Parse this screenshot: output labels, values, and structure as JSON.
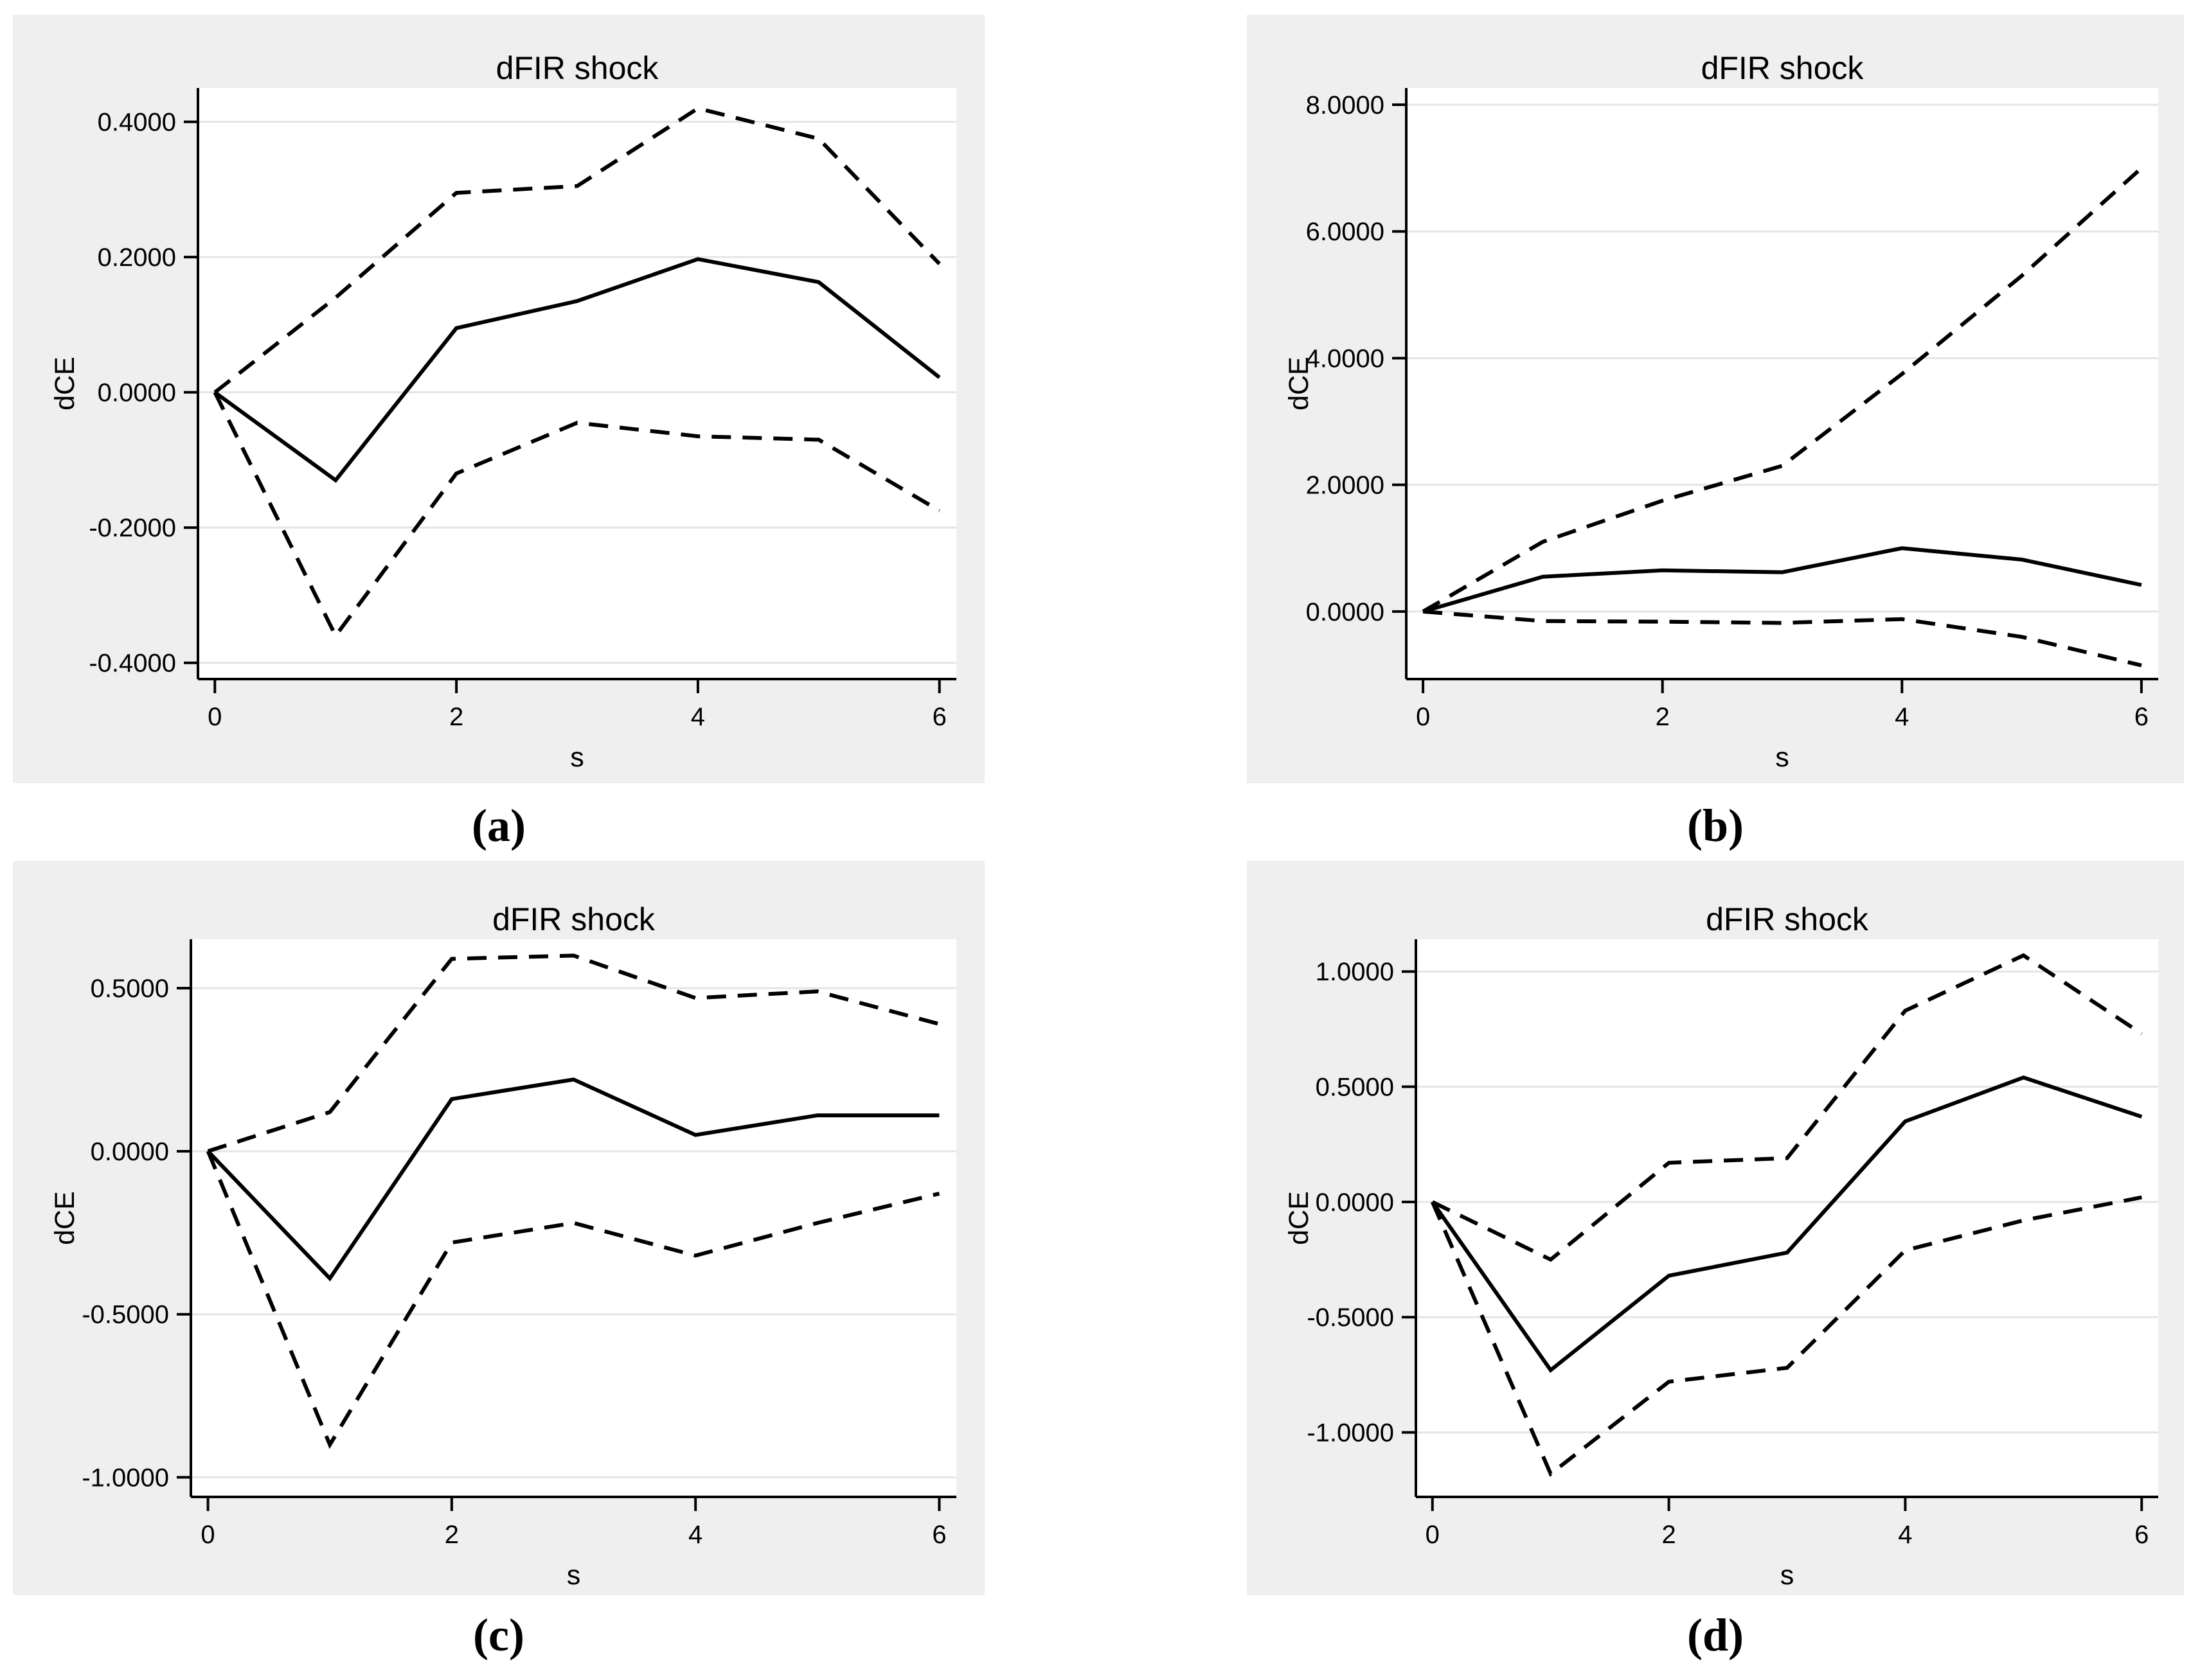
{
  "figure": {
    "kind": "impulse-response-function-grid",
    "colors": {
      "page_background": "#ffffff",
      "panel_background": "#efefef",
      "plot_background": "#ffffff",
      "grid": "#e5e5e5",
      "axis": "#000000",
      "line": "#000000"
    }
  },
  "chart_data": [
    {
      "id": "a",
      "type": "line",
      "caption": "(a)",
      "title": "dFIR shock",
      "xlabel": "s",
      "ylabel": "dCE",
      "x": [
        0,
        1,
        2,
        3,
        4,
        5,
        6
      ],
      "xlim": [
        -0.14,
        6.14
      ],
      "ylim": [
        -0.424,
        0.45
      ],
      "xticks": [
        0,
        2,
        4,
        6
      ],
      "xtick_labels": [
        "0",
        "2",
        "4",
        "6"
      ],
      "yticks": [
        0.4,
        0.2,
        0.0,
        -0.2,
        -0.4
      ],
      "ytick_labels": [
        "0.4000",
        "0.2000",
        "0.0000",
        "-0.2000",
        "-0.4000"
      ],
      "grid": "horizontal",
      "legend": "none",
      "series": [
        {
          "name": "upper confidence band",
          "style": "dashed",
          "values": [
            0,
            0.14,
            0.295,
            0.305,
            0.42,
            0.375,
            0.19
          ]
        },
        {
          "name": "impulse response",
          "style": "solid",
          "values": [
            0,
            -0.13,
            0.095,
            0.135,
            0.197,
            0.163,
            0.022
          ]
        },
        {
          "name": "lower confidence band",
          "style": "dashed",
          "values": [
            0,
            -0.36,
            -0.12,
            -0.045,
            -0.065,
            -0.07,
            -0.175
          ]
        }
      ]
    },
    {
      "id": "b",
      "type": "line",
      "caption": "(b)",
      "title": "dFIR shock",
      "xlabel": "s",
      "ylabel": "dCE",
      "x": [
        0,
        1,
        2,
        3,
        4,
        5,
        6
      ],
      "xlim": [
        -0.14,
        6.14
      ],
      "ylim": [
        -1.066,
        8.264
      ],
      "xticks": [
        0,
        2,
        4,
        6
      ],
      "xtick_labels": [
        "0",
        "2",
        "4",
        "6"
      ],
      "yticks": [
        8.0,
        6.0,
        4.0,
        2.0,
        0.0
      ],
      "ytick_labels": [
        "8.0000",
        "6.0000",
        "4.0000",
        "2.0000",
        "0.0000"
      ],
      "grid": "horizontal",
      "legend": "none",
      "series": [
        {
          "name": "upper confidence band",
          "style": "dashed",
          "values": [
            0,
            1.1,
            1.75,
            2.3,
            3.75,
            5.3,
            7.0
          ]
        },
        {
          "name": "impulse response",
          "style": "solid",
          "values": [
            0,
            0.55,
            0.65,
            0.62,
            1.0,
            0.82,
            0.42
          ]
        },
        {
          "name": "lower confidence band",
          "style": "dashed",
          "values": [
            0,
            -0.15,
            -0.16,
            -0.18,
            -0.12,
            -0.4,
            -0.85
          ]
        }
      ]
    },
    {
      "id": "c",
      "type": "line",
      "caption": "(c)",
      "title": "dFIR shock",
      "xlabel": "s",
      "ylabel": "dCE",
      "x": [
        0,
        1,
        2,
        3,
        4,
        5,
        6
      ],
      "xlim": [
        -0.14,
        6.14
      ],
      "ylim": [
        -1.06,
        0.65
      ],
      "xticks": [
        0,
        2,
        4,
        6
      ],
      "xtick_labels": [
        "0",
        "2",
        "4",
        "6"
      ],
      "yticks": [
        0.5,
        0.0,
        -0.5,
        -1.0
      ],
      "ytick_labels": [
        "0.5000",
        "0.0000",
        "-0.5000",
        "-1.0000"
      ],
      "grid": "horizontal",
      "legend": "none",
      "series": [
        {
          "name": "upper confidence band",
          "style": "dashed",
          "values": [
            0,
            0.12,
            0.59,
            0.6,
            0.47,
            0.49,
            0.39
          ]
        },
        {
          "name": "impulse response",
          "style": "solid",
          "values": [
            0,
            -0.39,
            0.16,
            0.22,
            0.05,
            0.11,
            0.11
          ]
        },
        {
          "name": "lower confidence band",
          "style": "dashed",
          "values": [
            0,
            -0.9,
            -0.28,
            -0.22,
            -0.32,
            -0.22,
            -0.13
          ]
        }
      ]
    },
    {
      "id": "d",
      "type": "line",
      "caption": "(d)",
      "title": "dFIR shock",
      "xlabel": "s",
      "ylabel": "dCE",
      "x": [
        0,
        1,
        2,
        3,
        4,
        5,
        6
      ],
      "xlim": [
        -0.14,
        6.14
      ],
      "ylim": [
        -1.28,
        1.14
      ],
      "xticks": [
        0,
        2,
        4,
        6
      ],
      "xtick_labels": [
        "0",
        "2",
        "4",
        "6"
      ],
      "yticks": [
        1.0,
        0.5,
        0.0,
        -0.5,
        -1.0
      ],
      "ytick_labels": [
        "1.0000",
        "0.5000",
        "0.0000",
        "-0.5000",
        "-1.0000"
      ],
      "grid": "horizontal",
      "legend": "none",
      "series": [
        {
          "name": "upper confidence band",
          "style": "dashed",
          "values": [
            0,
            -0.25,
            0.17,
            0.19,
            0.83,
            1.07,
            0.73
          ]
        },
        {
          "name": "impulse response",
          "style": "solid",
          "values": [
            0,
            -0.73,
            -0.32,
            -0.22,
            0.35,
            0.54,
            0.37
          ]
        },
        {
          "name": "lower confidence band",
          "style": "dashed",
          "values": [
            0,
            -1.18,
            -0.78,
            -0.72,
            -0.21,
            -0.08,
            0.02
          ]
        }
      ]
    }
  ]
}
